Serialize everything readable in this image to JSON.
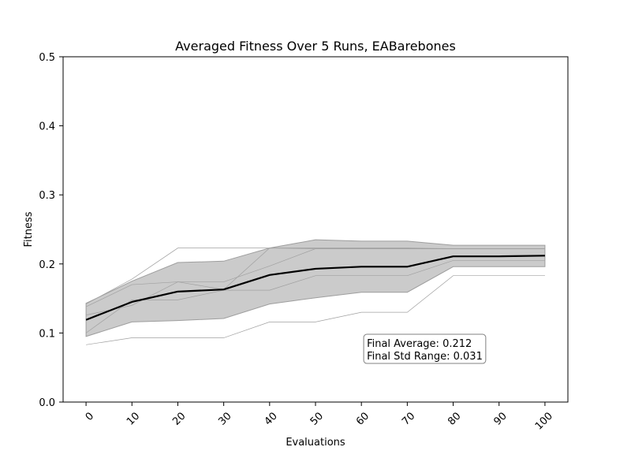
{
  "chart_data": {
    "type": "line",
    "title": "Averaged Fitness Over 5 Runs, EABarebones",
    "xlabel": "Evaluations",
    "ylabel": "Fitness",
    "xlim": [
      -5,
      105
    ],
    "ylim": [
      0,
      0.5
    ],
    "x_ticks": [
      "0",
      "10",
      "20",
      "30",
      "40",
      "50",
      "60",
      "70",
      "80",
      "90",
      "100"
    ],
    "y_ticks": [
      "0.0",
      "0.1",
      "0.2",
      "0.3",
      "0.4",
      "0.5"
    ],
    "x": [
      0,
      10,
      20,
      30,
      40,
      50,
      60,
      70,
      80,
      90,
      100
    ],
    "mean": {
      "color": "#000000",
      "values": [
        0.119,
        0.145,
        0.16,
        0.163,
        0.184,
        0.193,
        0.196,
        0.196,
        0.211,
        0.211,
        0.212
      ]
    },
    "std_band": {
      "color": "#bdbdbd",
      "upper": [
        0.143,
        0.175,
        0.202,
        0.204,
        0.223,
        0.235,
        0.233,
        0.233,
        0.227,
        0.227,
        0.227
      ],
      "lower": [
        0.095,
        0.116,
        0.118,
        0.121,
        0.142,
        0.151,
        0.159,
        0.159,
        0.196,
        0.196,
        0.196
      ]
    },
    "runs": [
      {
        "values": [
          0.083,
          0.093,
          0.093,
          0.093,
          0.116,
          0.116,
          0.13,
          0.13,
          0.183,
          0.183,
          0.183
        ]
      },
      {
        "values": [
          0.1,
          0.148,
          0.148,
          0.162,
          0.162,
          0.183,
          0.183,
          0.183,
          0.205,
          0.205,
          0.205
        ]
      },
      {
        "values": [
          0.126,
          0.14,
          0.174,
          0.174,
          0.197,
          0.222,
          0.222,
          0.222,
          0.222,
          0.222,
          0.222
        ]
      },
      {
        "values": [
          0.138,
          0.17,
          0.174,
          0.163,
          0.223,
          0.222,
          0.222,
          0.222,
          0.222,
          0.222,
          0.222
        ]
      },
      {
        "values": [
          0.142,
          0.178,
          0.223,
          0.223,
          0.223,
          0.223,
          0.223,
          0.223,
          0.222,
          0.222,
          0.222
        ]
      }
    ],
    "annotation": {
      "line1": "Final Average: 0.212",
      "line2": "Final Std Range: 0.031",
      "anchor": [
        60.5,
        0.065
      ]
    },
    "grid": false,
    "legend": "none"
  }
}
